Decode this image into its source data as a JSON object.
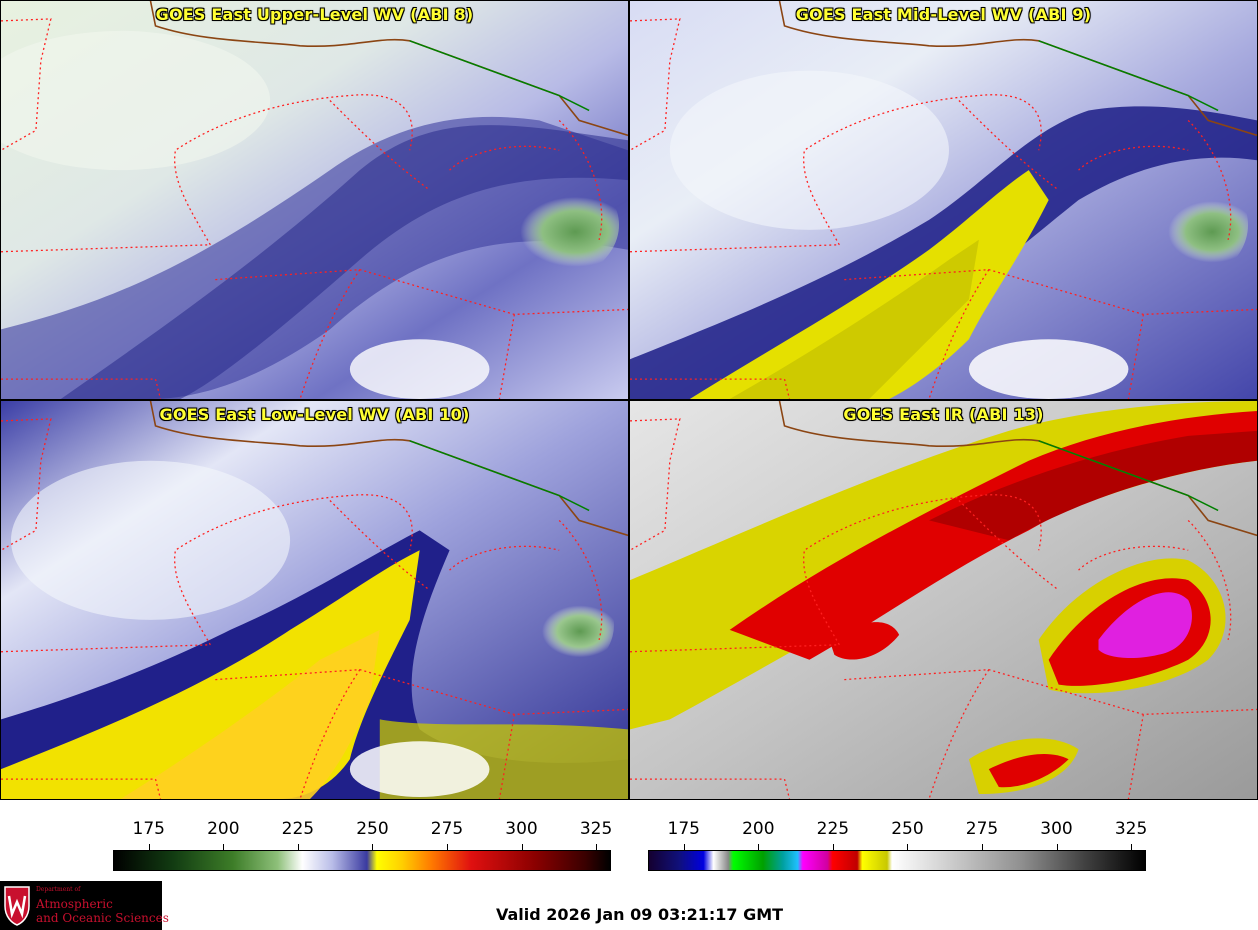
{
  "panels": [
    {
      "title": "GOES East Upper-Level WV (ABI 8)",
      "style": "wv-upper"
    },
    {
      "title": "GOES East Mid-Level WV (ABI 9)",
      "style": "wv-mid"
    },
    {
      "title": "GOES East Low-Level WV (ABI 10)",
      "style": "wv-low"
    },
    {
      "title": "GOES East IR (ABI 13)",
      "style": "ir"
    }
  ],
  "colorbars": {
    "wv": {
      "ticks": [
        "175",
        "200",
        "225",
        "250",
        "275",
        "300",
        "325"
      ],
      "min": 163,
      "max": 330
    },
    "ir": {
      "ticks": [
        "175",
        "200",
        "225",
        "250",
        "275",
        "300",
        "325"
      ],
      "min": 163,
      "max": 330
    }
  },
  "logo": {
    "department": "Department of",
    "line1": "Atmospheric",
    "line2": "and Oceanic Sciences"
  },
  "valid_time": "Valid 2026 Jan 09 03:21:17 GMT",
  "colors": {
    "title": "#ffff33",
    "border_state": "#e01010",
    "border_country": "#008000",
    "coast": "#8b4513"
  }
}
